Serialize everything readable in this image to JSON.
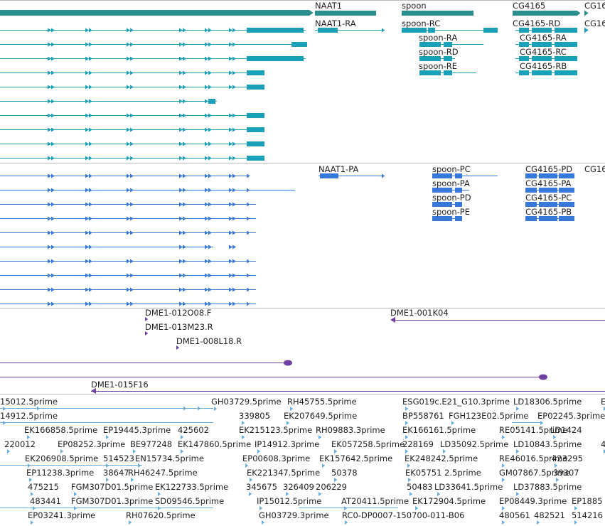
{
  "colors": {
    "gene": "#2a8e8e",
    "mrna_cds": "#1aa0b8",
    "protein": "#3878d8",
    "clone": "#7040a0",
    "est": "#6aaee0",
    "separator": "#bbbbbb"
  },
  "gene_labels": [
    "NAAT1",
    "spoon",
    "CG4165",
    "CG16"
  ],
  "mrna_labels": [
    "NAAT1-RA",
    "spoon-RC",
    "spoon-RA",
    "spoon-RD",
    "spoon-RE",
    "CG4165-RD",
    "CG4165-RA",
    "CG4165-RC",
    "CG4165-RB",
    "CG16"
  ],
  "protein_labels": [
    "NAAT1-PA",
    "spoon-PC",
    "spoon-PA",
    "spoon-PD",
    "spoon-PE",
    "CG4165-PD",
    "CG4165-PA",
    "CG4165-PC",
    "CG4165-PB",
    "CG16"
  ],
  "clone_labels": [
    "DME1-012O08.F",
    "DME1-013M23.R",
    "DME1-008L18.R",
    "DME1-001K04",
    "DME1-015F16"
  ],
  "est_labels": [
    "15012.5prime",
    "GH03729.5prime",
    "RH45755.5prime",
    "ESG019c.E21_G10.3prime",
    "LD18306.5prime",
    "E",
    "14912.5prime",
    "339805",
    "EK207649.5prime",
    "BP558761",
    "FGH123E02.5prime",
    "EP02245.3prime",
    "EK166858.5prime",
    "EP19445.3prime",
    "425602",
    "EK215123.5prime",
    "RH09883.3prime",
    "EK166161.5prime",
    "RE05141.5prime",
    "LD1424",
    "220012",
    "EP08252.3prime",
    "BE977248",
    "EK147860.5prime",
    "IP14912.3prime",
    "EK057258.5prime",
    "228169",
    "LD35092.5prime",
    "LD10843.5prime",
    "4",
    "EK206908.5prime",
    "514523",
    "EN15734.5prime",
    "EP00608.3prime",
    "EK157642.5prime",
    "EK248242.5prime",
    "RE46016.5prime",
    "423295",
    "EP11238.3prime",
    "38647",
    "RH46247.5prime",
    "EK221347.5prime",
    "50378",
    "EK05751 2.5prime",
    "GM07867.5prime",
    "39307",
    "475215",
    "FGM307D01.5prime",
    "EK122733.5prime",
    "345675",
    "326409",
    "206229",
    "50483",
    "LD33641.5prime",
    "LD37883.5prime",
    "483441",
    "FGM307D01.3prime",
    "SD09546.5prime",
    "IP15012.5prime",
    "AT20411.5prime",
    "EK172904.5prime",
    "EP08449.3prime",
    "EP1885",
    "EP03241.3prime",
    "RH07620.5prime",
    "GH03729.3prime",
    "RC0-DP0007-150700-011-B06",
    "480561",
    "482521",
    "514216"
  ]
}
